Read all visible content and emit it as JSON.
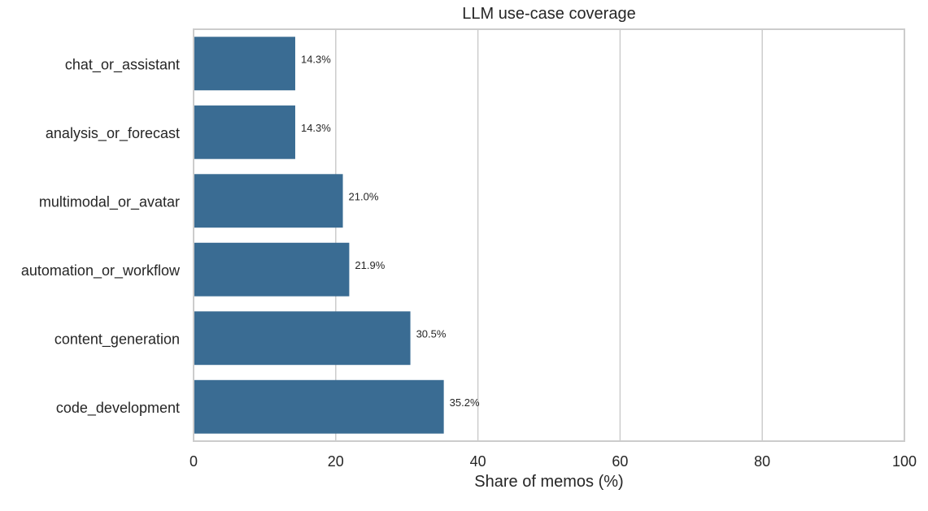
{
  "chart_data": {
    "type": "bar",
    "orientation": "horizontal",
    "title": "LLM use-case coverage",
    "xlabel": "Share of memos (%)",
    "ylabel": "",
    "xlim": [
      0,
      100
    ],
    "xticks": [
      0,
      20,
      40,
      60,
      80,
      100
    ],
    "grid": "vertical",
    "categories": [
      "chat_or_assistant",
      "analysis_or_forecast",
      "multimodal_or_avatar",
      "automation_or_workflow",
      "content_generation",
      "code_development"
    ],
    "values": [
      14.3,
      14.3,
      21.0,
      21.9,
      30.5,
      35.2
    ],
    "data_labels": [
      "14.3%",
      "14.3%",
      "21.0%",
      "21.9%",
      "30.5%",
      "35.2%"
    ],
    "bar_color": "#3a6c93"
  }
}
